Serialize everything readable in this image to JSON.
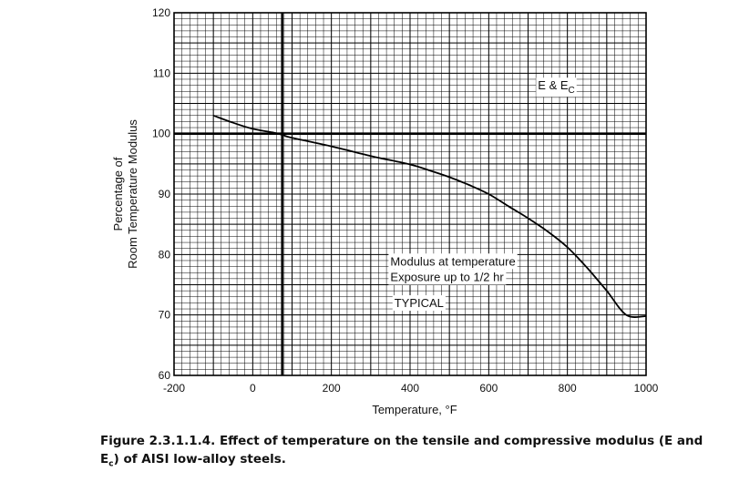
{
  "chart_data": {
    "type": "line",
    "title": "",
    "xlabel": "Temperature, °F",
    "ylabel_lines": [
      "Percentage of",
      "Room Temperature Modulus"
    ],
    "xlim": [
      -200,
      1000
    ],
    "ylim": [
      60,
      120
    ],
    "x_ticks": [
      -200,
      0,
      200,
      400,
      600,
      800,
      1000
    ],
    "y_ticks": [
      60,
      70,
      80,
      90,
      100,
      110,
      120
    ],
    "x_minor_step": 20,
    "y_minor_step": 1,
    "grid": true,
    "reference_lines": {
      "x": 75,
      "y": 100
    },
    "series": [
      {
        "name": "E & Ec",
        "x": [
          -100,
          -50,
          0,
          50,
          75,
          100,
          200,
          300,
          400,
          450,
          500,
          550,
          600,
          650,
          700,
          750,
          800,
          850,
          900,
          950,
          1000
        ],
        "y": [
          103,
          101.8,
          100.8,
          100.2,
          99.8,
          99.3,
          97.9,
          96.3,
          94.9,
          93.9,
          92.8,
          91.5,
          90.0,
          88.0,
          86.0,
          83.8,
          81.2,
          77.8,
          74.0,
          70.0,
          69.8
        ]
      }
    ],
    "annotations": [
      {
        "name": "curve-label",
        "text": "E & E",
        "subscript": "C",
        "x": 725,
        "y": 107.3
      },
      {
        "name": "condition-line-1",
        "text": "Modulus at temperature",
        "x": 350,
        "y": 78.2
      },
      {
        "name": "condition-line-2",
        "text": "Exposure up to 1/2 hr",
        "x": 350,
        "y": 75.6
      },
      {
        "name": "typical-label",
        "text": "TYPICAL",
        "x": 360,
        "y": 71.3
      }
    ]
  },
  "caption": {
    "text_before_sub": "Figure 2.3.1.1.4.  Effect of temperature on the tensile and compressive modulus (E and E",
    "sub": "c",
    "text_after_sub": ") of AISI low-alloy steels."
  }
}
